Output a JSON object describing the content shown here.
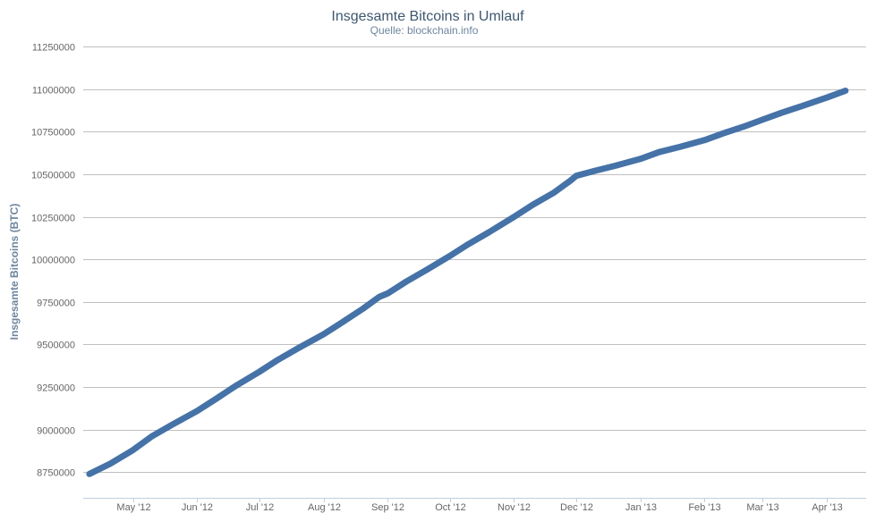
{
  "chart_data": {
    "type": "line",
    "title": "Insgesamte Bitcoins in Umlauf",
    "subtitle": "Quelle: blockchain.info",
    "xlabel": "",
    "ylabel": "Insgesamte Bitcoins (BTC)",
    "ylim": [
      8600000,
      11250000
    ],
    "yticks": [
      8750000,
      9000000,
      9250000,
      9500000,
      9750000,
      10000000,
      10250000,
      10500000,
      10750000,
      11000000,
      11250000
    ],
    "ytick_labels": [
      "8750000",
      "9000000",
      "9250000",
      "9500000",
      "9750000",
      "10000000",
      "10250000",
      "10500000",
      "10750000",
      "11000000",
      "11250000"
    ],
    "xlim": [
      "2012-04-07",
      "2013-04-20"
    ],
    "xticks": [
      "2012-05-01",
      "2012-06-01",
      "2012-07-01",
      "2012-08-01",
      "2012-09-01",
      "2012-10-01",
      "2012-11-01",
      "2012-12-01",
      "2013-01-01",
      "2013-02-01",
      "2013-03-01",
      "2013-04-01"
    ],
    "xtick_labels": [
      "May '12",
      "Jun '12",
      "Jul '12",
      "Aug '12",
      "Sep '12",
      "Oct '12",
      "Nov '12",
      "Dec '12",
      "Jan '13",
      "Feb '13",
      "Mar '13",
      "Apr '13"
    ],
    "grid": true,
    "legend": false,
    "series": [
      {
        "color": "#4572a7",
        "points": [
          [
            "2012-04-10",
            8740000
          ],
          [
            "2012-04-20",
            8800000
          ],
          [
            "2012-05-01",
            8880000
          ],
          [
            "2012-05-10",
            8960000
          ],
          [
            "2012-05-20",
            9030000
          ],
          [
            "2012-06-01",
            9110000
          ],
          [
            "2012-06-10",
            9180000
          ],
          [
            "2012-06-20",
            9260000
          ],
          [
            "2012-07-01",
            9340000
          ],
          [
            "2012-07-10",
            9410000
          ],
          [
            "2012-07-20",
            9480000
          ],
          [
            "2012-08-01",
            9560000
          ],
          [
            "2012-08-10",
            9630000
          ],
          [
            "2012-08-20",
            9710000
          ],
          [
            "2012-08-28",
            9780000
          ],
          [
            "2012-09-01",
            9800000
          ],
          [
            "2012-09-10",
            9870000
          ],
          [
            "2012-09-20",
            9940000
          ],
          [
            "2012-10-01",
            10020000
          ],
          [
            "2012-10-10",
            10090000
          ],
          [
            "2012-10-20",
            10160000
          ],
          [
            "2012-11-01",
            10250000
          ],
          [
            "2012-11-10",
            10320000
          ],
          [
            "2012-11-20",
            10390000
          ],
          [
            "2012-11-28",
            10460000
          ],
          [
            "2012-12-01",
            10490000
          ],
          [
            "2012-12-10",
            10520000
          ],
          [
            "2012-12-20",
            10550000
          ],
          [
            "2013-01-01",
            10590000
          ],
          [
            "2013-01-10",
            10630000
          ],
          [
            "2013-01-20",
            10660000
          ],
          [
            "2013-02-01",
            10700000
          ],
          [
            "2013-02-10",
            10740000
          ],
          [
            "2013-02-20",
            10780000
          ],
          [
            "2013-03-01",
            10820000
          ],
          [
            "2013-03-10",
            10860000
          ],
          [
            "2013-03-20",
            10900000
          ],
          [
            "2013-04-01",
            10950000
          ],
          [
            "2013-04-10",
            10990000
          ]
        ]
      }
    ]
  }
}
